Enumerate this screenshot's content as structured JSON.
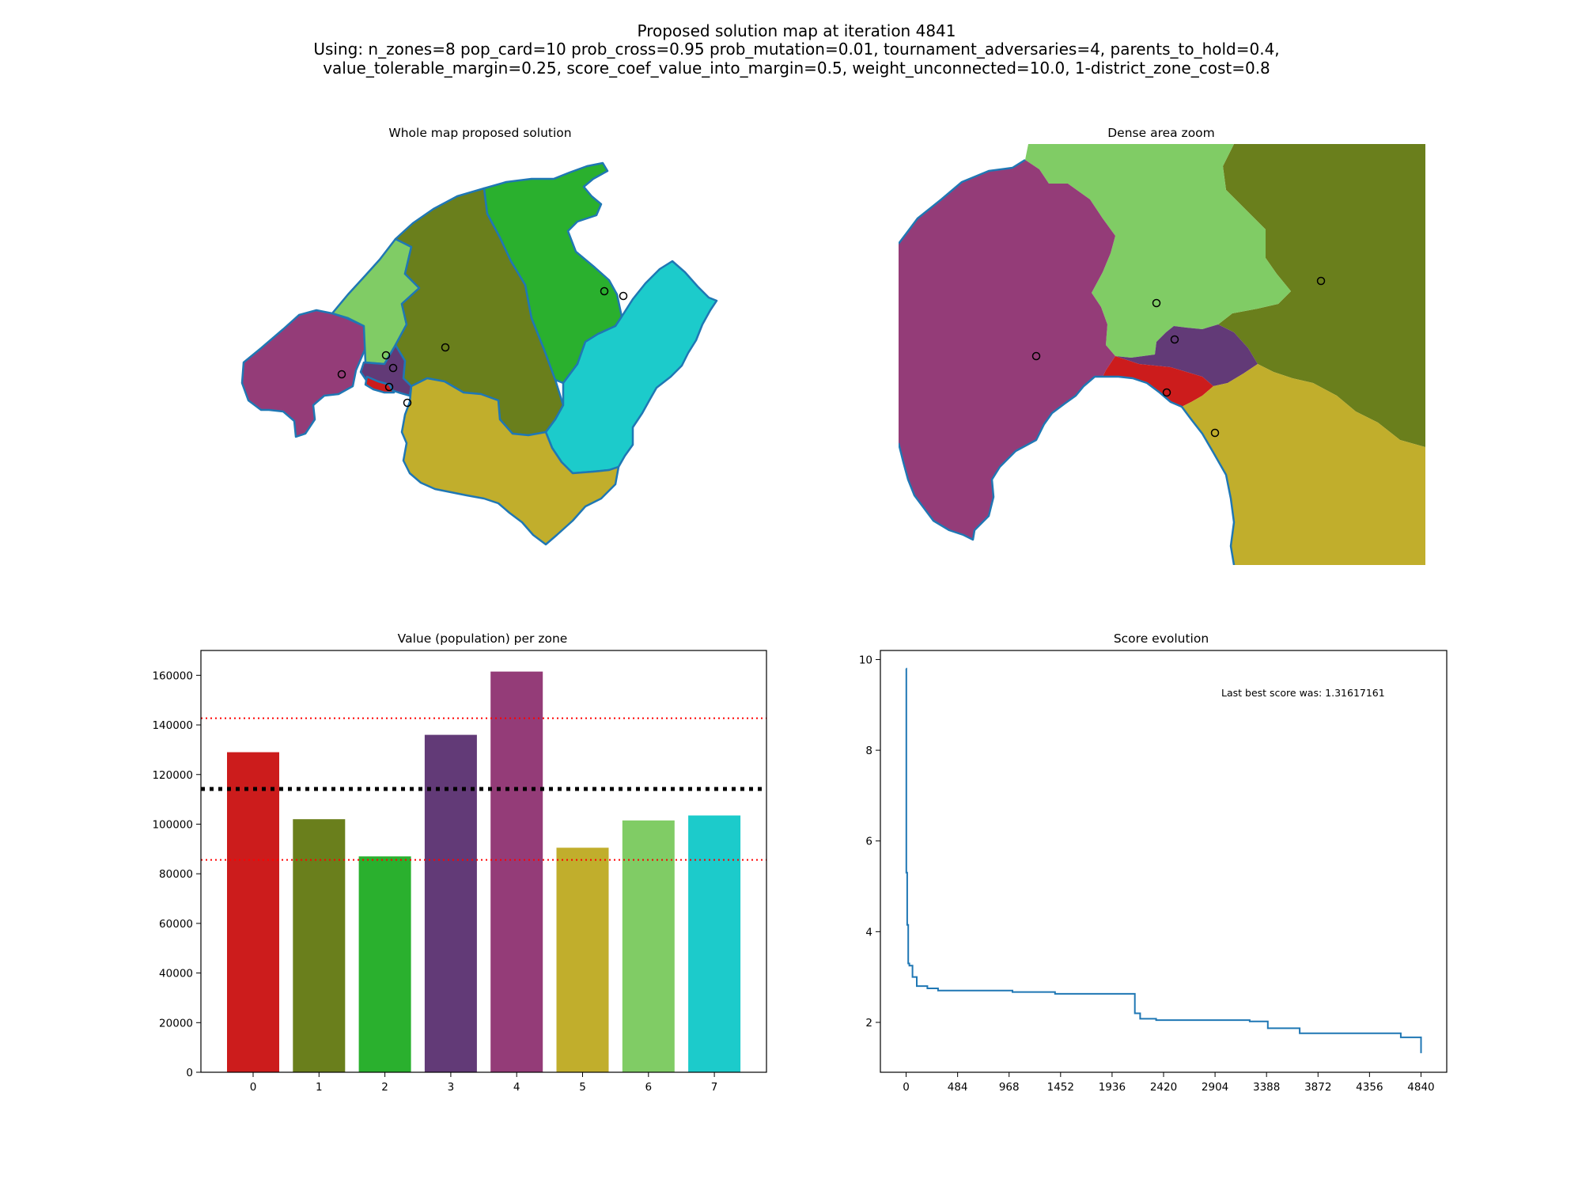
{
  "figure": {
    "title_lines": [
      "Proposed solution map at iteration 4841",
      "Using: n_zones=8 pop_card=10 prob_cross=0.95 prob_mutation=0.01, tournament_adversaries=4, parents_to_hold=0.4,",
      "value_tolerable_margin=0.25, score_coef_value_into_margin=0.5, weight_unconnected=10.0, 1-district_zone_cost=0.8"
    ]
  },
  "zone_colors": [
    "#cc1c1c",
    "#6a7f1c",
    "#2ab02e",
    "#623a77",
    "#943c78",
    "#c1ae2c",
    "#80cc65",
    "#1ccbcb"
  ],
  "map_whole": {
    "title": "Whole map proposed solution",
    "coast_color": "#1f77b4"
  },
  "map_zoom": {
    "title": "Dense area zoom"
  },
  "chart_data": [
    {
      "type": "bar",
      "title": "Value (population) per zone",
      "xlabel": "",
      "ylabel": "",
      "categories": [
        "0",
        "1",
        "2",
        "3",
        "4",
        "5",
        "6",
        "7"
      ],
      "values": [
        129000,
        102000,
        87000,
        136000,
        161500,
        90500,
        101500,
        103500
      ],
      "ylim": [
        0,
        170000
      ],
      "yticks": [
        0,
        20000,
        40000,
        60000,
        80000,
        100000,
        120000,
        140000,
        160000
      ],
      "reference_lines": [
        {
          "value": 114200,
          "color": "#000000",
          "style": "dotted-thick"
        },
        {
          "value": 142700,
          "color": "#ff0000",
          "style": "dotted"
        },
        {
          "value": 85600,
          "color": "#ff0000",
          "style": "dotted"
        }
      ],
      "grid": false
    },
    {
      "type": "line",
      "title": "Score evolution",
      "xlabel": "",
      "ylabel": "",
      "xticks": [
        0,
        484,
        968,
        1452,
        1936,
        2420,
        2904,
        3388,
        3872,
        4356,
        4840
      ],
      "yticks": [
        2,
        4,
        6,
        8,
        10
      ],
      "xlim": [
        -242,
        5082
      ],
      "ylim": [
        0.9,
        10.2
      ],
      "annotation": "Last best score was: 1.31617161",
      "color": "#1f77b4",
      "series": [
        {
          "x": [
            0,
            2,
            2,
            10,
            10,
            20,
            20,
            30,
            30,
            60,
            60,
            100,
            100,
            200,
            200,
            300,
            300,
            1000,
            1000,
            1400,
            1400,
            2150,
            2150,
            2200,
            2200,
            2350,
            2350,
            3230,
            3230,
            3400,
            3400,
            3700,
            3700,
            4650,
            4650,
            4840,
            4840
          ],
          "y": [
            9.8,
            9.8,
            5.3,
            5.3,
            4.15,
            4.15,
            3.3,
            3.3,
            3.25,
            3.25,
            3.0,
            3.0,
            2.8,
            2.8,
            2.75,
            2.75,
            2.7,
            2.7,
            2.67,
            2.67,
            2.63,
            2.63,
            2.2,
            2.2,
            2.08,
            2.08,
            2.05,
            2.05,
            2.02,
            2.02,
            1.87,
            1.87,
            1.76,
            1.76,
            1.67,
            1.67,
            1.32
          ]
        }
      ],
      "grid": false
    }
  ]
}
